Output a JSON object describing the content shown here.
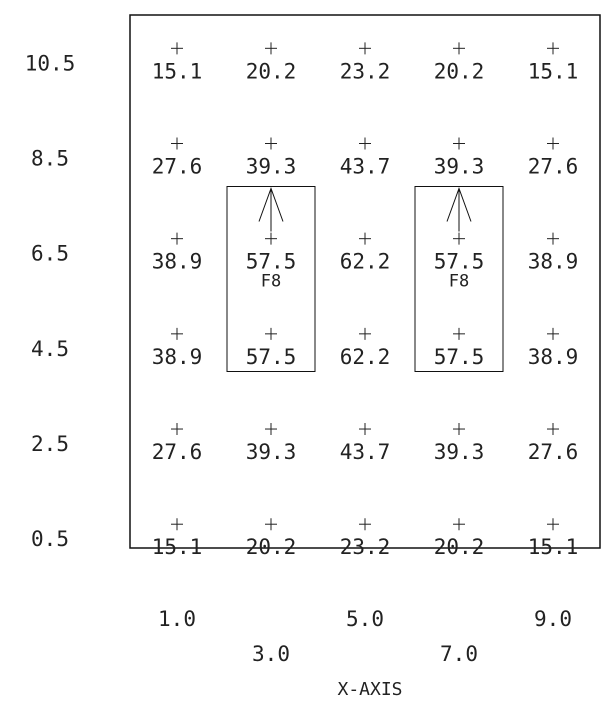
{
  "chart_data": {
    "type": "grid",
    "x": [
      1,
      3,
      5,
      7,
      9
    ],
    "y": [
      10.5,
      8.5,
      6.5,
      4.5,
      2.5,
      0.5
    ],
    "values": [
      [
        15.1,
        20.2,
        23.2,
        20.2,
        15.1
      ],
      [
        27.6,
        39.3,
        43.7,
        39.3,
        27.6
      ],
      [
        38.9,
        57.5,
        62.2,
        57.5,
        38.9
      ],
      [
        38.9,
        57.5,
        62.2,
        57.5,
        38.9
      ],
      [
        27.6,
        39.3,
        43.7,
        39.3,
        27.6
      ],
      [
        15.1,
        20.2,
        23.2,
        20.2,
        15.1
      ]
    ],
    "xlim": [
      0,
      10
    ],
    "ylim": [
      0,
      11.2
    ],
    "xticks": [
      {
        "value": 1,
        "label": "1.0"
      },
      {
        "value": 3,
        "label": "3.0"
      },
      {
        "value": 5,
        "label": "5.0"
      },
      {
        "value": 7,
        "label": "7.0"
      },
      {
        "value": 9,
        "label": "9.0"
      }
    ],
    "yticks": [
      10.5,
      8.5,
      6.5,
      4.5,
      2.5,
      0.5
    ],
    "x_label": "X-AXIS",
    "annotations": [
      {
        "text": "F8",
        "x": 3,
        "y": 5.6
      },
      {
        "text": "F8",
        "x": 7,
        "y": 5.6
      }
    ],
    "color": "#222222"
  }
}
